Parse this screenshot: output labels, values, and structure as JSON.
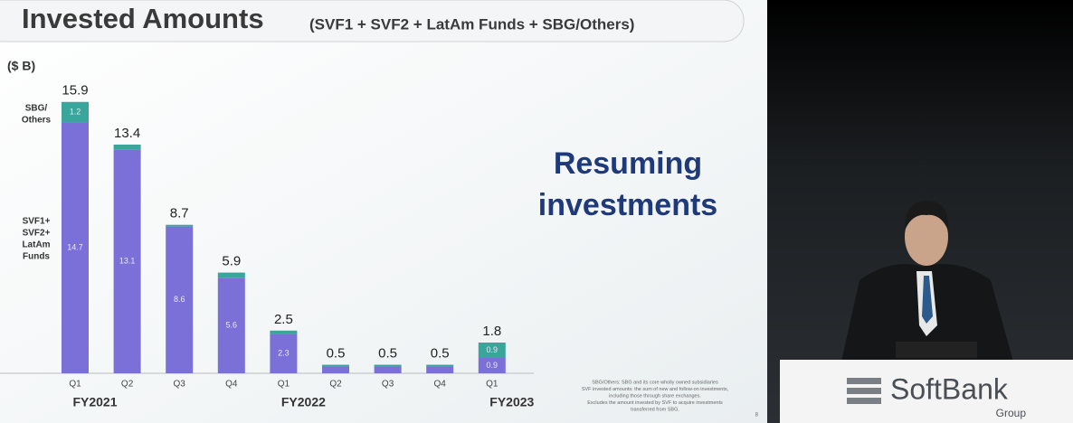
{
  "chart_data": {
    "type": "stacked-bar",
    "title": "Invested Amounts",
    "subtitle": "(SVF1 + SVF2 + LatAm Funds + SBG/Others)",
    "unit": "($ B)",
    "callout": "Resuming investments",
    "categories": [
      "Q1",
      "Q2",
      "Q3",
      "Q4",
      "Q1",
      "Q2",
      "Q3",
      "Q4",
      "Q1"
    ],
    "category_groups": [
      "FY2021",
      null,
      null,
      null,
      "FY2022",
      null,
      null,
      null,
      "FY2023"
    ],
    "series": [
      {
        "name": "SVF1+ SVF2+ LatAm Funds",
        "color": "#7b70d8",
        "values": [
          14.7,
          13.1,
          8.6,
          5.6,
          2.3,
          0.4,
          0.4,
          0.4,
          0.9
        ],
        "value_labels": [
          "14.7",
          "13.1",
          "8.6",
          "5.6",
          "2.3",
          null,
          null,
          null,
          "0.9"
        ]
      },
      {
        "name": "SBG/ Others",
        "color": "#3aa59b",
        "values": [
          1.2,
          0.3,
          0.1,
          0.3,
          0.2,
          0.1,
          0.1,
          0.1,
          0.9
        ],
        "value_labels": [
          "1.2",
          null,
          null,
          null,
          null,
          null,
          null,
          null,
          "0.9"
        ]
      }
    ],
    "totals": [
      15.9,
      13.4,
      8.7,
      5.9,
      2.5,
      0.5,
      0.5,
      0.5,
      1.8
    ],
    "ylim": [
      0,
      17
    ],
    "footnotes": [
      "SBG/Others: SBG and its core wholly owned subsidiaries",
      "SVF invested amounts: the sum of new and follow-on investments,",
      "including those through share exchanges.",
      "Excludes the amount invested by SVF to acquire investments",
      "transferred from SBG."
    ],
    "page_number": "8",
    "logo": {
      "name": "SoftBank",
      "sub": "Group"
    }
  }
}
